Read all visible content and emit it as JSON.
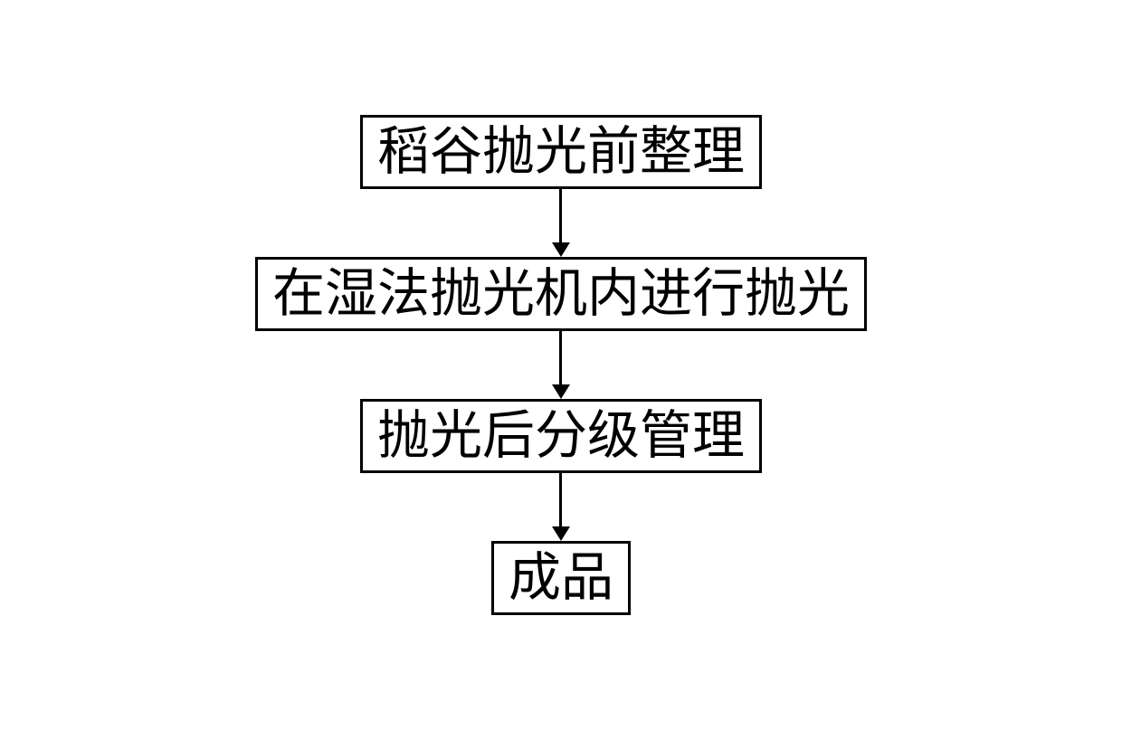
{
  "flowchart": {
    "type": "flowchart",
    "direction": "vertical",
    "background_color": "#ffffff",
    "node_border_color": "#000000",
    "node_border_width": 3,
    "node_background_color": "#ffffff",
    "text_color": "#000000",
    "font_family": "SimSun",
    "arrow_color": "#000000",
    "arrow_line_width": 3,
    "arrow_gap_height": 75,
    "nodes": [
      {
        "id": "step1",
        "label": "稻谷抛光前整理",
        "font_size": 58
      },
      {
        "id": "step2",
        "label": "在湿法抛光机内进行抛光",
        "font_size": 58
      },
      {
        "id": "step3",
        "label": "抛光后分级管理",
        "font_size": 58
      },
      {
        "id": "step4",
        "label": "成品",
        "font_size": 58
      }
    ],
    "edges": [
      {
        "from": "step1",
        "to": "step2"
      },
      {
        "from": "step2",
        "to": "step3"
      },
      {
        "from": "step3",
        "to": "step4"
      }
    ]
  }
}
